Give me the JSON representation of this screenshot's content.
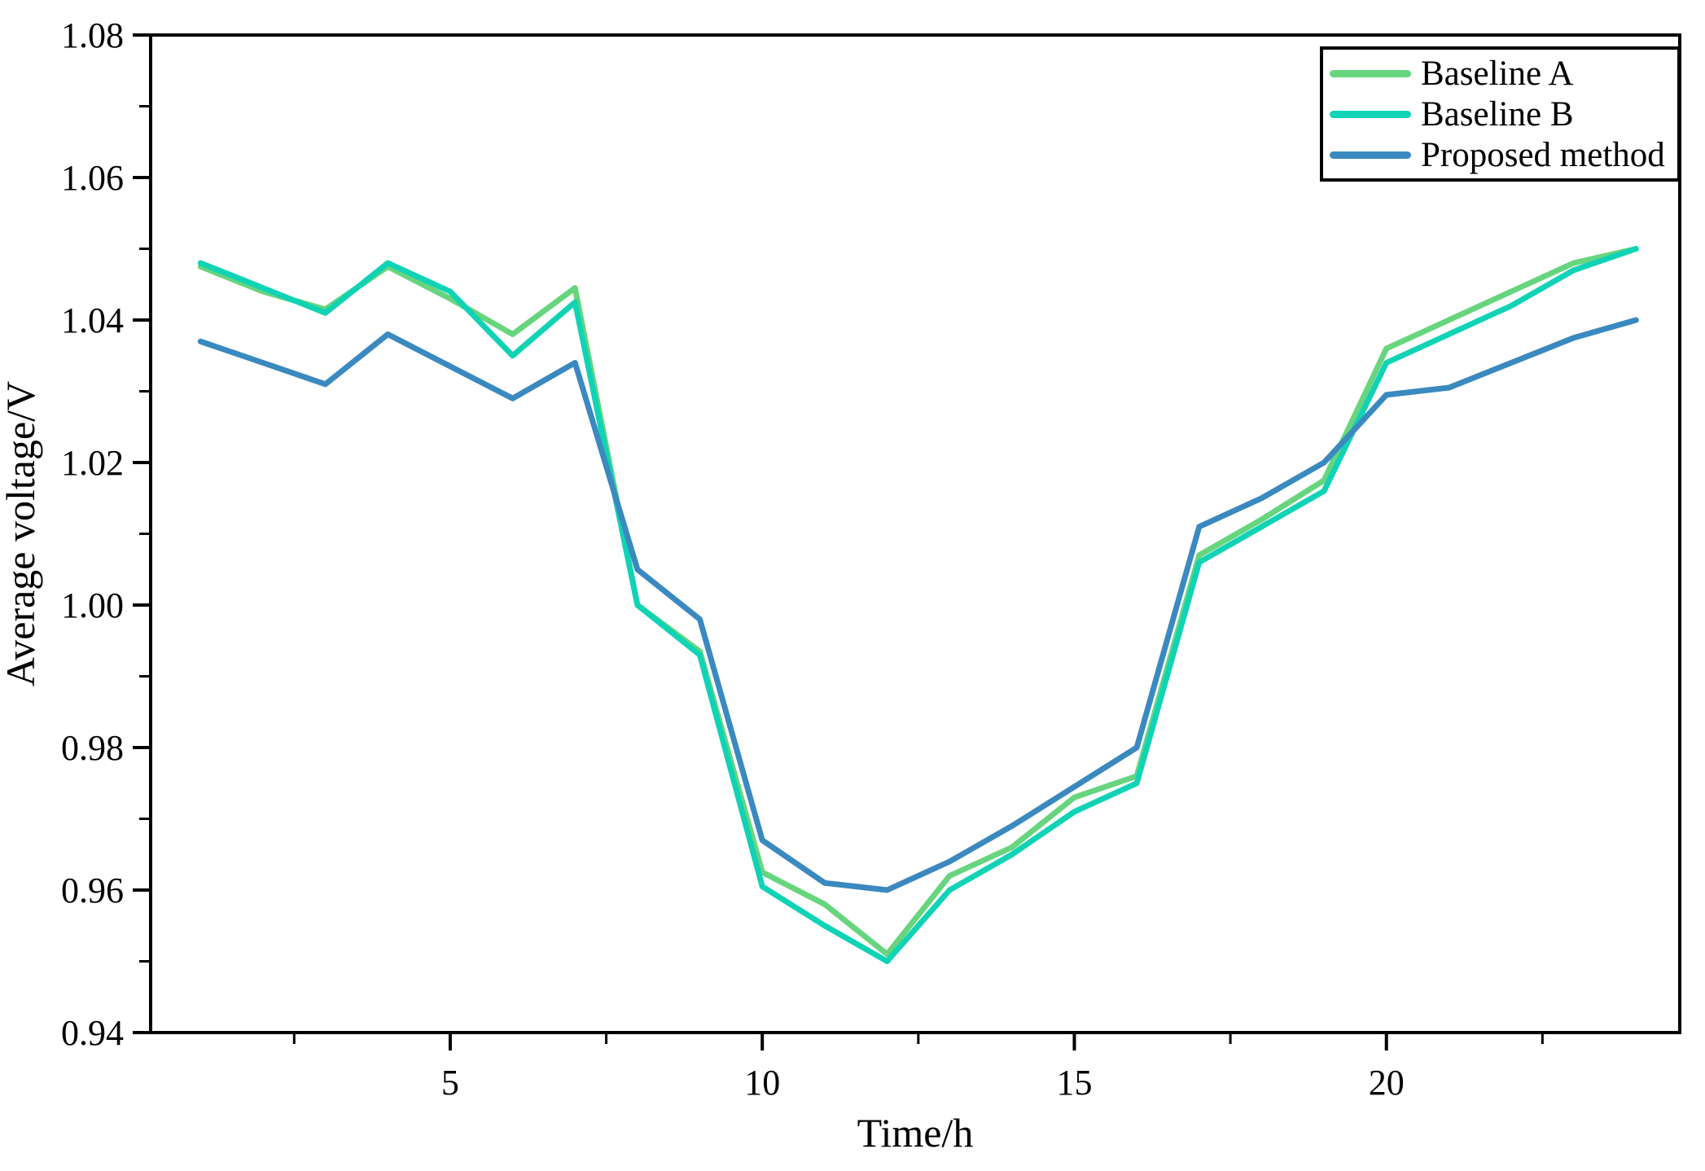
{
  "chart_data": {
    "type": "line",
    "title": "",
    "xlabel": "Time/h",
    "ylabel": "Average voltage/V",
    "x": [
      1,
      2,
      3,
      4,
      5,
      6,
      7,
      8,
      9,
      10,
      11,
      12,
      13,
      14,
      15,
      16,
      17,
      18,
      19,
      20,
      21,
      22,
      23,
      24
    ],
    "series": [
      {
        "name": "Baseline A",
        "color": "#67D57E",
        "values": [
          1.0475,
          1.044,
          1.0415,
          1.0475,
          1.043,
          1.038,
          1.0445,
          1.0,
          0.9935,
          0.9625,
          0.958,
          0.951,
          0.962,
          0.966,
          0.973,
          0.976,
          1.007,
          1.012,
          1.0175,
          1.036,
          1.04,
          1.044,
          1.048,
          1.05
        ]
      },
      {
        "name": "Baseline B",
        "color": "#10D3B6",
        "values": [
          1.048,
          1.0445,
          1.041,
          1.048,
          1.044,
          1.035,
          1.0425,
          1.0,
          0.993,
          0.9605,
          0.955,
          0.95,
          0.96,
          0.965,
          0.971,
          0.975,
          1.006,
          1.011,
          1.016,
          1.034,
          1.038,
          1.042,
          1.047,
          1.05
        ]
      },
      {
        "name": "Proposed method",
        "color": "#3A89BF",
        "values": [
          1.037,
          1.034,
          1.031,
          1.038,
          1.0335,
          1.029,
          1.034,
          1.005,
          0.998,
          0.967,
          0.961,
          0.96,
          0.964,
          0.969,
          0.9745,
          0.98,
          1.011,
          1.015,
          1.02,
          1.0295,
          1.0305,
          1.034,
          1.0375,
          1.04
        ]
      }
    ],
    "xlim": [
      0.2,
      24.7
    ],
    "ylim": [
      0.94,
      1.08
    ],
    "x_major_ticks": [
      5,
      10,
      15,
      20
    ],
    "x_minor_ticks": [
      2.5,
      7.5,
      12.5,
      17.5,
      22.5
    ],
    "y_major_ticks": [
      0.94,
      0.96,
      0.98,
      1.0,
      1.02,
      1.04,
      1.06,
      1.08
    ],
    "y_minor_ticks": [
      0.95,
      0.97,
      0.99,
      1.01,
      1.03,
      1.05,
      1.07
    ],
    "y_tick_decimals": 2,
    "grid": false,
    "legend_position": "top-right",
    "axis_color": "#000000",
    "line_width": 7
  }
}
